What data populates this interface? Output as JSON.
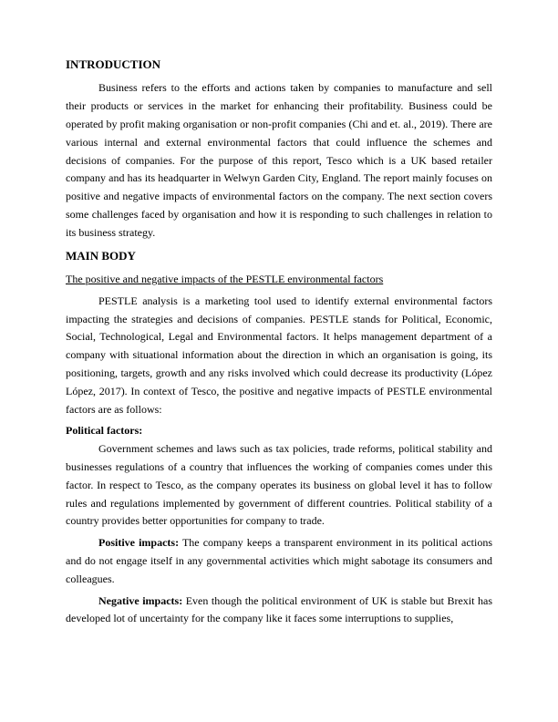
{
  "introduction": {
    "heading": "INTRODUCTION",
    "para": "Business refers to the efforts and actions taken by companies to manufacture and sell their products or services in the market for enhancing their profitability. Business could be operated by profit making organisation or non-profit companies (Chi and et. al., 2019). There are various internal and external environmental factors that could influence the schemes and decisions of companies. For the purpose of this report, Tesco which is a UK based retailer company and has its headquarter in Welwyn Garden City, England. The report mainly focuses on positive and negative impacts of environmental factors on the company. The next section covers some challenges faced by organisation and how it is responding to such challenges in relation to its business strategy."
  },
  "mainbody": {
    "heading": "MAIN BODY",
    "subheading": "The positive and negative impacts of the PESTLE environmental factors",
    "pestle_intro": "PESTLE analysis is a marketing tool used to identify external environmental factors impacting the strategies and decisions of companies. PESTLE stands for Political, Economic, Social, Technological, Legal and Environmental factors. It helps management department of a company with situational information about the direction in which an organisation is going, its positioning, targets, growth and any risks involved which could decrease its productivity (López López, 2017). In context of Tesco, the positive and negative impacts of PESTLE environmental factors are as follows:",
    "political": {
      "label": "Political factors:",
      "para": "Government schemes and laws such as tax policies, trade reforms, political stability and businesses regulations of a country that influences the working of companies comes under this factor. In respect to Tesco,  as the company operates its business on global level it has to follow rules and regulations implemented by government of different countries. Political stability of a country provides better opportunities for company to trade.",
      "positive_label": "Positive impacts:",
      "positive_text": " The company keeps a transparent environment in its political actions and do not engage itself in any governmental activities which might sabotage its consumers and colleagues.",
      "negative_label": "Negative impacts:",
      "negative_text": "  Even though the political environment of UK is stable but Brexit has developed lot of uncertainty for the company like it faces some interruptions to supplies,"
    }
  }
}
